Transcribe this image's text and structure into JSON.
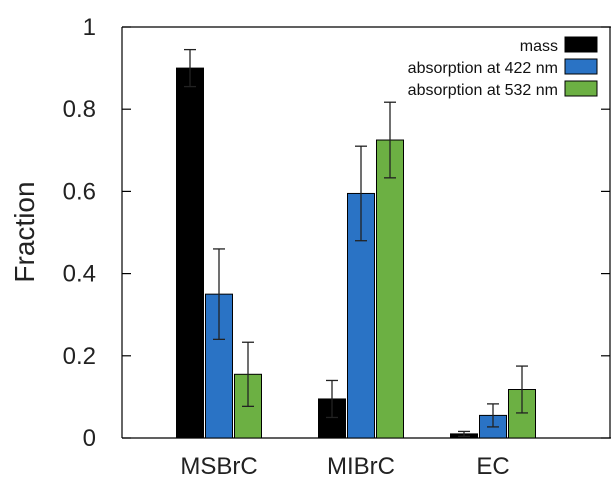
{
  "chart_data": {
    "type": "bar",
    "title": "",
    "xlabel": "",
    "ylabel": "Fraction",
    "ylim": [
      0,
      1
    ],
    "yticks": [
      0,
      0.2,
      0.4,
      0.6,
      0.8,
      1
    ],
    "ytick_labels": [
      "0",
      "0.2",
      "0.4",
      "0.6",
      "0.8",
      "1"
    ],
    "grid": false,
    "legend_position": "top-right",
    "categories": [
      "MSBrC",
      "MIBrC",
      "EC"
    ],
    "series": [
      {
        "name": "mass",
        "color": "#000000",
        "values": [
          0.9,
          0.095,
          0.01
        ],
        "errors": [
          0.045,
          0.045,
          0.006
        ]
      },
      {
        "name": "absorption at 422 nm",
        "color": "#2a73c5",
        "values": [
          0.35,
          0.595,
          0.055
        ],
        "errors": [
          0.11,
          0.115,
          0.028
        ]
      },
      {
        "name": "absorption at 532 nm",
        "color": "#6cb043",
        "values": [
          0.155,
          0.725,
          0.118
        ],
        "errors": [
          0.078,
          0.092,
          0.057
        ]
      }
    ]
  }
}
